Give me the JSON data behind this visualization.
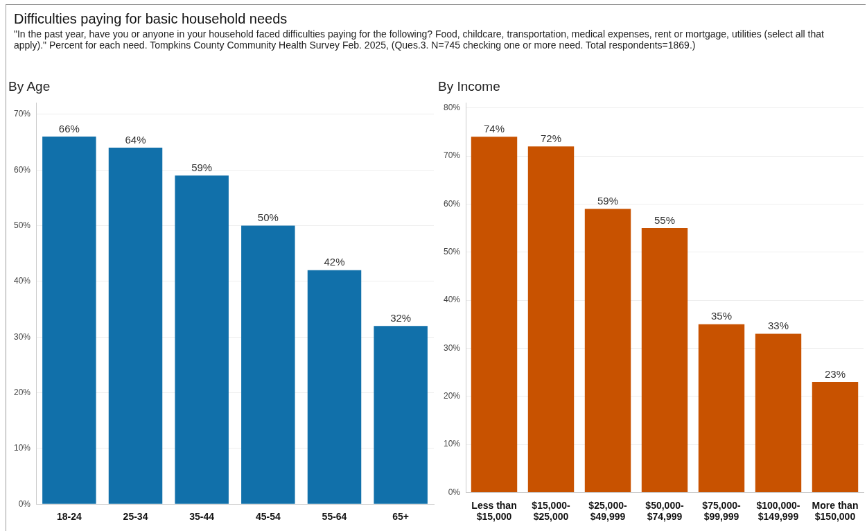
{
  "chart_data": [
    {
      "type": "other",
      "title": "Difficulties paying for basic household needs",
      "subtitle": "\"In the past year, have you or anyone in your household faced difficulties paying for the following? Food, childcare, transportation, medical expenses, rent or mortgage, utilities (select all that apply).\" Percent for each need. Tompkins County Community Health Survey Feb. 2025, (Ques.3. N=745 checking one or more need. Total respondents=1869.)"
    },
    {
      "type": "bar",
      "title": "By Age",
      "categories": [
        "18-24",
        "25-34",
        "35-44",
        "45-54",
        "55-64",
        "65+"
      ],
      "values": [
        66,
        64,
        59,
        50,
        42,
        32
      ],
      "value_labels": [
        "66%",
        "64%",
        "59%",
        "50%",
        "42%",
        "32%"
      ],
      "color": "#1170aa",
      "ylim": [
        0,
        72
      ],
      "yticks": [
        {
          "value": 0,
          "label": "0%"
        },
        {
          "value": 10,
          "label": "10%"
        },
        {
          "value": 20,
          "label": "20%"
        },
        {
          "value": 30,
          "label": "30%"
        },
        {
          "value": 40,
          "label": "40%"
        },
        {
          "value": 50,
          "label": "50%"
        },
        {
          "value": 60,
          "label": "60%"
        },
        {
          "value": 70,
          "label": "70%"
        }
      ],
      "grid": "y"
    },
    {
      "type": "bar",
      "title": "By Income",
      "categories": [
        "Less than $15,000",
        "$15,000-$25,000",
        "$25,000-$49,999",
        "$50,000-$74,999",
        "$75,000-$99,999",
        "$100,000-$149,999",
        "More than $150,000"
      ],
      "values": [
        74,
        72,
        59,
        55,
        35,
        33,
        23
      ],
      "value_labels": [
        "74%",
        "72%",
        "59%",
        "55%",
        "35%",
        "33%",
        "23%"
      ],
      "color": "#c85200",
      "ylim": [
        0,
        81
      ],
      "yticks": [
        {
          "value": 0,
          "label": "0%"
        },
        {
          "value": 10,
          "label": "10%"
        },
        {
          "value": 20,
          "label": "20%"
        },
        {
          "value": 30,
          "label": "30%"
        },
        {
          "value": 40,
          "label": "40%"
        },
        {
          "value": 50,
          "label": "50%"
        },
        {
          "value": 60,
          "label": "60%"
        },
        {
          "value": 70,
          "label": "70%"
        },
        {
          "value": 80,
          "label": "80%"
        }
      ],
      "grid": "y"
    }
  ]
}
